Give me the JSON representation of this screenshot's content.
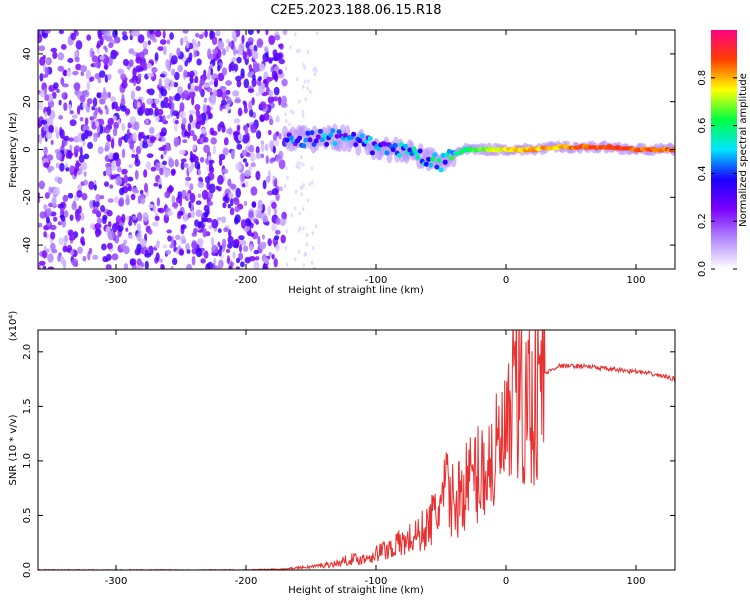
{
  "title": "C2E5.2023.188.06.15.R18",
  "chart_data": [
    {
      "type": "heatmap",
      "xlabel": "Height of straight line (km)",
      "ylabel": "Frequency (Hz)",
      "xlim": [
        -360,
        130
      ],
      "ylim": [
        -50,
        50
      ],
      "x_ticks": [
        -300,
        -200,
        -100,
        0,
        100
      ],
      "y_ticks": [
        -40,
        -20,
        0,
        20,
        40
      ],
      "colorbar": {
        "label": "Normalized spectral amplitude",
        "range": [
          0,
          1
        ],
        "ticks": [
          0.0,
          0.2,
          0.4,
          0.6,
          0.8
        ],
        "tick_labels": [
          "0.0",
          "0.2",
          "0.4",
          "0.6",
          "0.8"
        ],
        "colors": [
          "#ffffff",
          "#b48cff",
          "#7a00ff",
          "#1a00ff",
          "#00e5ff",
          "#00ff40",
          "#ffff00",
          "#ff4000",
          "#ff0080"
        ]
      },
      "noise_region": {
        "x_range": [
          -360,
          -170
        ],
        "color": "#7a00ff"
      },
      "ridge": [
        {
          "x": -170,
          "f": 4,
          "amp": 0.3
        },
        {
          "x": -160,
          "f": 5,
          "amp": 0.3
        },
        {
          "x": -150,
          "f": 4,
          "amp": 0.35
        },
        {
          "x": -140,
          "f": 5,
          "amp": 0.35
        },
        {
          "x": -130,
          "f": 5,
          "amp": 0.35
        },
        {
          "x": -120,
          "f": 4,
          "amp": 0.35
        },
        {
          "x": -110,
          "f": 3,
          "amp": 0.35
        },
        {
          "x": -100,
          "f": 1,
          "amp": 0.35
        },
        {
          "x": -90,
          "f": 0,
          "amp": 0.35
        },
        {
          "x": -80,
          "f": -1,
          "amp": 0.4
        },
        {
          "x": -70,
          "f": -2,
          "amp": 0.4
        },
        {
          "x": -60,
          "f": -4,
          "amp": 0.45
        },
        {
          "x": -50,
          "f": -6,
          "amp": 0.45
        },
        {
          "x": -40,
          "f": -2,
          "amp": 0.55
        },
        {
          "x": -30,
          "f": 0,
          "amp": 0.6
        },
        {
          "x": -20,
          "f": 0,
          "amp": 0.65
        },
        {
          "x": -10,
          "f": 0,
          "amp": 0.7
        },
        {
          "x": 0,
          "f": 0,
          "amp": 0.75
        },
        {
          "x": 20,
          "f": 0,
          "amp": 0.8
        },
        {
          "x": 40,
          "f": 1,
          "amp": 0.8
        },
        {
          "x": 60,
          "f": 1,
          "amp": 0.85
        },
        {
          "x": 80,
          "f": 1,
          "amp": 0.9
        },
        {
          "x": 100,
          "f": 0,
          "amp": 0.85
        },
        {
          "x": 120,
          "f": 0,
          "amp": 0.85
        },
        {
          "x": 130,
          "f": 0,
          "amp": 0.85
        }
      ]
    },
    {
      "type": "line",
      "xlabel": "Height of straight line (km)",
      "ylabel": "SNR (10 * v/v)",
      "y_multiplier": "(x10⁴)",
      "xlim": [
        -360,
        130
      ],
      "ylim": [
        0,
        2.2
      ],
      "x_ticks": [
        -300,
        -200,
        -100,
        0,
        100
      ],
      "y_ticks": [
        0.0,
        0.5,
        1.0,
        1.5,
        2.0
      ],
      "y_tick_labels": [
        "0.0",
        "0.5",
        "1.0",
        "1.5",
        "2.0"
      ],
      "series": [
        {
          "color": "#e83030",
          "x": [
            -360,
            -300,
            -200,
            -170,
            -150,
            -130,
            -120,
            -110,
            -100,
            -90,
            -80,
            -70,
            -60,
            -50,
            -45,
            -40,
            -30,
            -20,
            -10,
            0,
            5,
            10,
            15,
            20,
            25,
            30,
            40,
            60,
            80,
            100,
            120,
            130
          ],
          "y": [
            0.0,
            0.0,
            0.0,
            0.01,
            0.03,
            0.06,
            0.1,
            0.1,
            0.15,
            0.2,
            0.25,
            0.3,
            0.4,
            0.6,
            0.75,
            0.6,
            0.8,
            0.9,
            1.0,
            1.2,
            1.3,
            1.4,
            1.5,
            1.6,
            1.7,
            1.8,
            1.87,
            1.87,
            1.84,
            1.82,
            1.78,
            1.75
          ]
        }
      ]
    }
  ]
}
